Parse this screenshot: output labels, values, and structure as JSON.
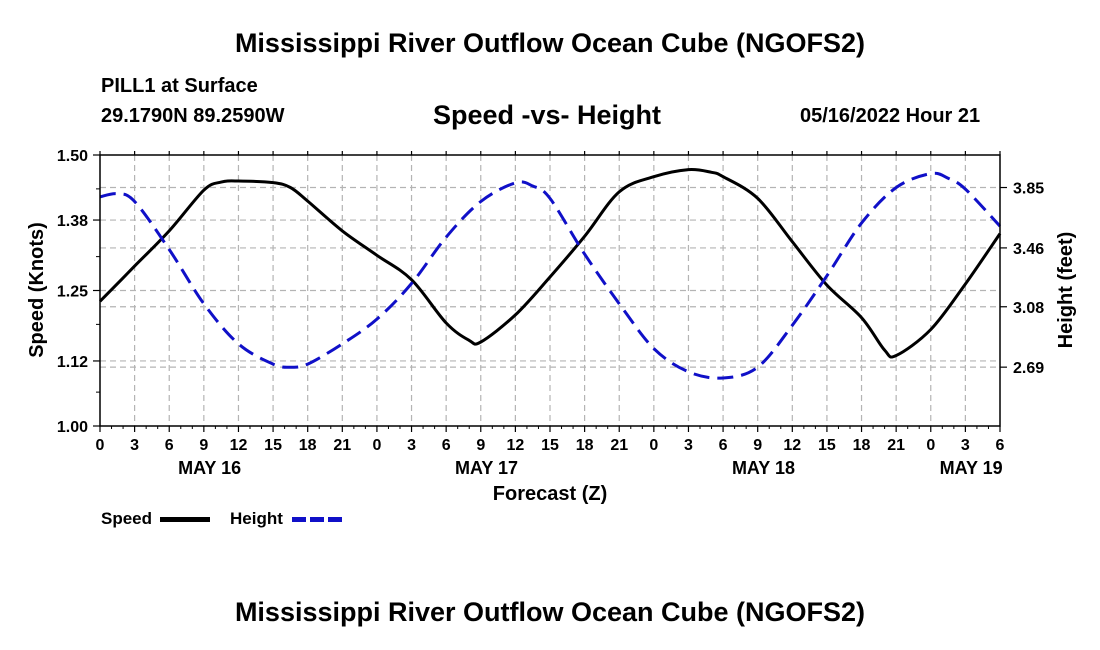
{
  "header": {
    "title": "Mississippi River Outflow Ocean Cube (NGOFS2)",
    "station": "PILL1 at Surface",
    "coordinates": "29.1790N  89.2590W",
    "subtitle": "Speed -vs- Height",
    "datetime": "05/16/2022 Hour 21"
  },
  "footer": {
    "title": "Mississippi River Outflow Ocean Cube (NGOFS2)"
  },
  "legend": {
    "items": [
      {
        "label": "Speed",
        "color": "#000000"
      },
      {
        "label": "Height",
        "color": "#1010c8"
      }
    ]
  },
  "chart_data": {
    "type": "line",
    "title": "Speed -vs- Height",
    "xlabel": "Forecast (Z)",
    "ylabel": "Speed (Knots)",
    "y2label": "Height (feet)",
    "xlim": [
      0,
      78
    ],
    "ylim": [
      1.0,
      1.5
    ],
    "y2lim": [
      2.31,
      4.06
    ],
    "grid": true,
    "x_tick_values": [
      0,
      3,
      6,
      9,
      12,
      15,
      18,
      21,
      24,
      27,
      30,
      33,
      36,
      39,
      42,
      45,
      48,
      51,
      54,
      57,
      60,
      63,
      66,
      69,
      72,
      75,
      78
    ],
    "x_tick_labels": [
      "0",
      "3",
      "6",
      "9",
      "12",
      "15",
      "18",
      "21",
      "0",
      "3",
      "6",
      "9",
      "12",
      "15",
      "18",
      "21",
      "0",
      "3",
      "6",
      "9",
      "12",
      "15",
      "18",
      "21",
      "0",
      "3",
      "6"
    ],
    "y_ticks": [
      "1.00",
      "1.12",
      "1.25",
      "1.38",
      "1.50"
    ],
    "y2_ticks": [
      "2.69",
      "3.08",
      "3.46",
      "3.85"
    ],
    "day_labels": [
      {
        "label": "MAY 16",
        "x": 9.5
      },
      {
        "label": "MAY 17",
        "x": 33.5
      },
      {
        "label": "MAY 18",
        "x": 57.5
      },
      {
        "label": "MAY 19",
        "x": 75.5
      }
    ],
    "series": [
      {
        "name": "Speed",
        "axis": "left",
        "color": "#000000",
        "dashed": false,
        "x": [
          0,
          3,
          6,
          9,
          10.5,
          12,
          15,
          16.5,
          18,
          21,
          24,
          27,
          30,
          32,
          33,
          36,
          39,
          42,
          45,
          48,
          51,
          53,
          54,
          57,
          60,
          63,
          66,
          68,
          69,
          72,
          75,
          78
        ],
        "values": [
          1.23,
          1.295,
          1.36,
          1.435,
          1.45,
          1.452,
          1.449,
          1.44,
          1.415,
          1.36,
          1.315,
          1.27,
          1.19,
          1.158,
          1.155,
          1.205,
          1.275,
          1.35,
          1.432,
          1.46,
          1.473,
          1.468,
          1.46,
          1.42,
          1.34,
          1.26,
          1.2,
          1.14,
          1.13,
          1.178,
          1.262,
          1.355
        ]
      },
      {
        "name": "Height",
        "axis": "right",
        "color": "#1010c8",
        "dashed": true,
        "x": [
          0,
          1.5,
          3,
          6,
          9,
          12,
          15,
          16.5,
          18,
          21,
          24,
          27,
          30,
          33,
          36,
          37.5,
          39,
          42,
          45,
          48,
          51,
          54,
          57,
          60,
          63,
          66,
          69,
          72,
          73.5,
          75,
          78
        ],
        "values": [
          3.79,
          3.81,
          3.76,
          3.45,
          3.1,
          2.84,
          2.71,
          2.69,
          2.71,
          2.84,
          3.0,
          3.23,
          3.53,
          3.76,
          3.88,
          3.86,
          3.78,
          3.42,
          3.1,
          2.81,
          2.66,
          2.62,
          2.69,
          2.96,
          3.28,
          3.62,
          3.85,
          3.94,
          3.91,
          3.84,
          3.6
        ]
      }
    ]
  }
}
